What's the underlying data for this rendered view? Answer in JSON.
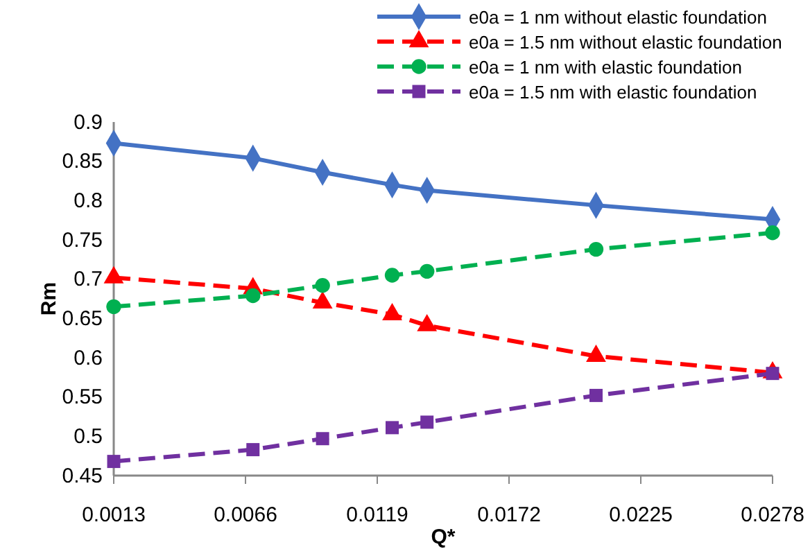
{
  "chart_data": {
    "type": "line",
    "xlabel": "Q*",
    "ylabel": "Rm",
    "x": [
      0.0013,
      0.0069,
      0.0097,
      0.0125,
      0.0139,
      0.0207,
      0.0278
    ],
    "xlim": [
      0.0013,
      0.0278
    ],
    "xticks": [
      0.0013,
      0.0066,
      0.0119,
      0.0172,
      0.0225,
      0.0278
    ],
    "ylim": [
      0.45,
      0.9
    ],
    "yticks": [
      0.45,
      0.5,
      0.55,
      0.6,
      0.65,
      0.7,
      0.75,
      0.8,
      0.85,
      0.9
    ],
    "grid": false,
    "legend": "top right",
    "series": [
      {
        "name": "e0a = 1 nm without elastic foundation",
        "color": "#4472c4",
        "marker": "diamond",
        "line_style": "solid",
        "values": [
          0.873,
          0.854,
          0.836,
          0.82,
          0.813,
          0.794,
          0.776
        ]
      },
      {
        "name": "e0a = 1.5 nm without elastic foundation",
        "color": "#ff0000",
        "marker": "triangle",
        "line_style": "dashed",
        "values": [
          0.702,
          0.688,
          0.67,
          0.655,
          0.641,
          0.602,
          0.581
        ]
      },
      {
        "name": "e0a = 1 nm with elastic foundation",
        "color": "#00b050",
        "marker": "circle",
        "line_style": "dashed",
        "values": [
          0.665,
          0.679,
          0.692,
          0.705,
          0.71,
          0.738,
          0.759
        ]
      },
      {
        "name": "e0a = 1.5 nm with elastic foundation",
        "color": "#7030a0",
        "marker": "square",
        "line_style": "dashed",
        "values": [
          0.468,
          0.483,
          0.497,
          0.511,
          0.518,
          0.552,
          0.58
        ]
      }
    ]
  }
}
